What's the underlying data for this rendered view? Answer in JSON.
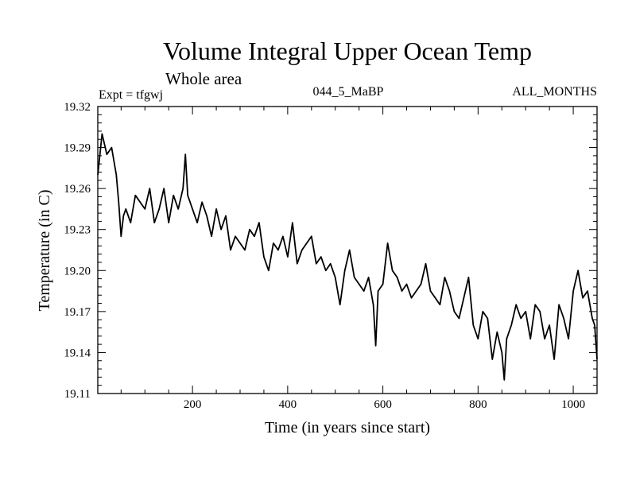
{
  "chart_data": {
    "type": "line",
    "title": "Volume Integral Upper Ocean Temp",
    "subtitle": "Whole area",
    "experiment": "Expt = tfgwj",
    "run_label": "044_5_MaBP",
    "months_label": "ALL_MONTHS",
    "xlabel": "Time (in years since start)",
    "ylabel": "Temperature (in C)",
    "xlim": [
      1,
      1050
    ],
    "ylim": [
      19.11,
      19.32
    ],
    "x_ticks": [
      200,
      400,
      600,
      800,
      1000
    ],
    "x_tick_labels": [
      "200",
      "400",
      "600",
      "800",
      "1000"
    ],
    "y_ticks": [
      19.11,
      19.14,
      19.17,
      19.2,
      19.23,
      19.26,
      19.29,
      19.32
    ],
    "y_tick_labels": [
      "19.11",
      "19.14",
      "19.17",
      "19.20",
      "19.23",
      "19.26",
      "19.29",
      "19.32"
    ],
    "grid": false,
    "series": [
      {
        "name": "Volume integral upper ocean temperature",
        "x": [
          1,
          10,
          20,
          30,
          40,
          45,
          50,
          55,
          60,
          70,
          80,
          90,
          100,
          110,
          120,
          130,
          140,
          150,
          160,
          170,
          180,
          185,
          190,
          200,
          210,
          220,
          230,
          240,
          250,
          260,
          270,
          280,
          290,
          300,
          310,
          320,
          330,
          340,
          350,
          360,
          370,
          380,
          390,
          400,
          410,
          420,
          430,
          440,
          450,
          460,
          470,
          480,
          490,
          500,
          510,
          520,
          530,
          540,
          550,
          560,
          570,
          580,
          585,
          590,
          600,
          610,
          620,
          630,
          640,
          650,
          660,
          670,
          680,
          690,
          700,
          710,
          720,
          730,
          740,
          750,
          760,
          770,
          780,
          790,
          800,
          810,
          820,
          830,
          840,
          850,
          855,
          860,
          870,
          880,
          890,
          900,
          910,
          920,
          930,
          940,
          950,
          960,
          970,
          980,
          990,
          1000,
          1010,
          1020,
          1030,
          1040,
          1045,
          1050
        ],
        "y": [
          19.27,
          19.3,
          19.285,
          19.29,
          19.27,
          19.25,
          19.225,
          19.24,
          19.245,
          19.235,
          19.255,
          19.25,
          19.245,
          19.26,
          19.235,
          19.245,
          19.26,
          19.235,
          19.255,
          19.245,
          19.26,
          19.285,
          19.255,
          19.245,
          19.235,
          19.25,
          19.24,
          19.225,
          19.245,
          19.23,
          19.24,
          19.215,
          19.225,
          19.22,
          19.215,
          19.23,
          19.225,
          19.235,
          19.21,
          19.2,
          19.22,
          19.215,
          19.225,
          19.21,
          19.235,
          19.205,
          19.215,
          19.22,
          19.225,
          19.205,
          19.21,
          19.2,
          19.205,
          19.195,
          19.175,
          19.2,
          19.215,
          19.195,
          19.19,
          19.185,
          19.195,
          19.175,
          19.145,
          19.185,
          19.19,
          19.22,
          19.2,
          19.195,
          19.185,
          19.19,
          19.18,
          19.185,
          19.19,
          19.205,
          19.185,
          19.18,
          19.175,
          19.195,
          19.185,
          19.17,
          19.165,
          19.18,
          19.195,
          19.16,
          19.15,
          19.17,
          19.165,
          19.135,
          19.155,
          19.14,
          19.12,
          19.15,
          19.16,
          19.175,
          19.165,
          19.17,
          19.15,
          19.175,
          19.17,
          19.15,
          19.16,
          19.135,
          19.175,
          19.165,
          19.15,
          19.185,
          19.2,
          19.18,
          19.185,
          19.165,
          19.16,
          19.135
        ]
      }
    ]
  }
}
